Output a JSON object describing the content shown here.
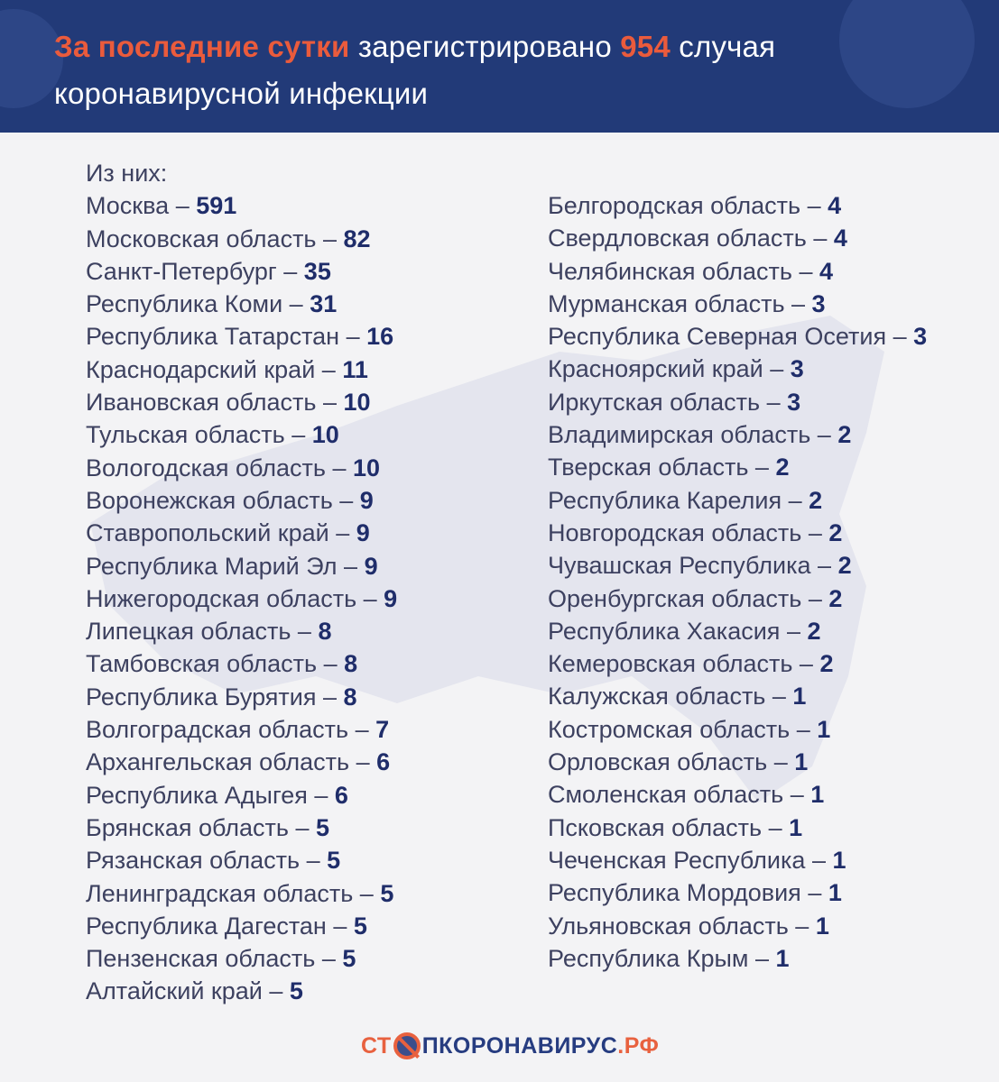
{
  "header": {
    "title_accent": "За последние сутки",
    "title_mid": " зарегистрировано ",
    "title_count": "954",
    "title_end": " случая",
    "title_line2": "коронавирусной инфекции"
  },
  "intro": "Из них:",
  "left_column": [
    {
      "region": "Москва",
      "count": "591"
    },
    {
      "region": "Московская область",
      "count": "82"
    },
    {
      "region": "Санкт-Петербург",
      "count": "35"
    },
    {
      "region": "Республика Коми",
      "count": "31"
    },
    {
      "region": "Республика Татарстан",
      "count": "16"
    },
    {
      "region": "Краснодарский край",
      "count": "11"
    },
    {
      "region": "Ивановская область",
      "count": "10"
    },
    {
      "region": "Тульская область",
      "count": "10"
    },
    {
      "region": "Вологодская область",
      "count": "10"
    },
    {
      "region": "Воронежская область",
      "count": "9"
    },
    {
      "region": "Ставропольский край",
      "count": "9"
    },
    {
      "region": "Республика Марий Эл",
      "count": "9"
    },
    {
      "region": "Нижегородская область",
      "count": "9"
    },
    {
      "region": "Липецкая область",
      "count": "8"
    },
    {
      "region": "Тамбовская область",
      "count": "8"
    },
    {
      "region": "Республика Бурятия",
      "count": "8"
    },
    {
      "region": "Волгоградская область",
      "count": "7"
    },
    {
      "region": "Архангельская область",
      "count": "6"
    },
    {
      "region": "Республика Адыгея",
      "count": "6"
    },
    {
      "region": "Брянская область",
      "count": "5"
    },
    {
      "region": "Рязанская область",
      "count": "5"
    },
    {
      "region": "Ленинградская область",
      "count": "5"
    },
    {
      "region": "Республика Дагестан",
      "count": "5"
    },
    {
      "region": "Пензенская область",
      "count": "5"
    },
    {
      "region": "Алтайский край",
      "count": "5"
    }
  ],
  "right_column": [
    {
      "region": "Белгородская область",
      "count": "4"
    },
    {
      "region": "Свердловская область",
      "count": "4"
    },
    {
      "region": "Челябинская область",
      "count": "4"
    },
    {
      "region": "Мурманская область",
      "count": "3"
    },
    {
      "region": "Республика Северная Осетия",
      "count": "3"
    },
    {
      "region": "Красноярский край",
      "count": "3"
    },
    {
      "region": "Иркутская область",
      "count": "3"
    },
    {
      "region": "Владимирская область",
      "count": "2"
    },
    {
      "region": "Тверская область",
      "count": "2"
    },
    {
      "region": "Республика Карелия",
      "count": "2"
    },
    {
      "region": "Новгородская область",
      "count": "2"
    },
    {
      "region": "Чувашская Республика",
      "count": "2"
    },
    {
      "region": "Оренбургская область",
      "count": "2"
    },
    {
      "region": "Республика Хакасия",
      "count": "2"
    },
    {
      "region": "Кемеровская область",
      "count": "2"
    },
    {
      "region": "Калужская область",
      "count": "1"
    },
    {
      "region": "Костромская область",
      "count": "1"
    },
    {
      "region": "Орловская область",
      "count": "1"
    },
    {
      "region": "Смоленская область",
      "count": "1"
    },
    {
      "region": "Псковская область",
      "count": "1"
    },
    {
      "region": "Чеченская Республика",
      "count": "1"
    },
    {
      "region": "Республика Мордовия",
      "count": "1"
    },
    {
      "region": "Ульяновская область",
      "count": "1"
    },
    {
      "region": "Республика Крым",
      "count": "1"
    }
  ],
  "separator": " – ",
  "logo": {
    "part1": "СТ",
    "part2": "ПКОРОНАВИРУС",
    "part3": ".РФ"
  },
  "colors": {
    "header_bg": "#223a78",
    "accent": "#ea5b3c",
    "number": "#1f2d6a",
    "text": "#3d4160"
  }
}
